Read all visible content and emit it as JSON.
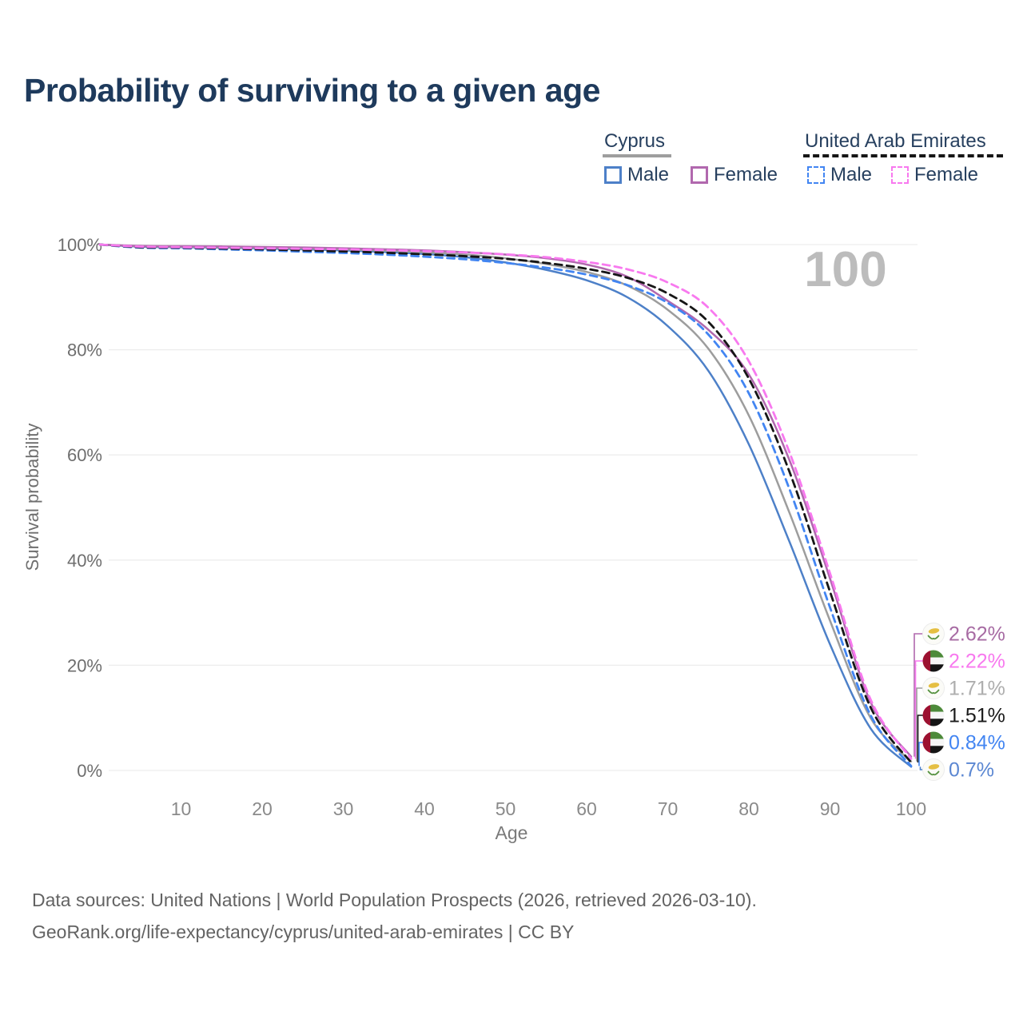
{
  "title": "Probability of surviving to a given age",
  "age_counter": "100",
  "legend": {
    "groups": [
      {
        "name": "Cyprus",
        "line_style": "solid",
        "underline_color": "#9e9e9e",
        "items": [
          {
            "label": "Male",
            "color": "#4d80c8"
          },
          {
            "label": "Female",
            "color": "#b168ae"
          }
        ]
      },
      {
        "name": "United Arab Emirates",
        "line_style": "dashed",
        "underline_color": "#161616",
        "items": [
          {
            "label": "Male",
            "color": "#4285f2"
          },
          {
            "label": "Female",
            "color": "#f879ef"
          }
        ]
      }
    ]
  },
  "chart_data": {
    "type": "line",
    "title": "Probability of surviving to a given age",
    "xlabel": "Age",
    "ylabel": "Survival probability",
    "xlim": [
      0,
      100
    ],
    "ylim": [
      0,
      100
    ],
    "grid": "horizontal",
    "legend_position": "top-right",
    "x_ticks": [
      10,
      20,
      30,
      40,
      50,
      60,
      70,
      80,
      90,
      100
    ],
    "y_ticks": [
      {
        "value": 100,
        "label": "100%"
      },
      {
        "value": 80,
        "label": "80%"
      },
      {
        "value": 60,
        "label": "60%"
      },
      {
        "value": 40,
        "label": "40%"
      },
      {
        "value": 20,
        "label": "20%"
      },
      {
        "value": 0,
        "label": "0%"
      }
    ],
    "x": [
      0,
      5,
      10,
      15,
      20,
      25,
      30,
      35,
      40,
      45,
      50,
      55,
      60,
      65,
      70,
      75,
      80,
      85,
      90,
      95,
      100
    ],
    "series": [
      {
        "id": "cyprus-male",
        "name": "Cyprus Male",
        "country": "Cyprus",
        "sex": "Male",
        "color": "#4d80c8",
        "dash": "solid",
        "flag": "cyprus",
        "end_label": "0.7%",
        "end_label_color": "#5b87d2",
        "values": [
          100,
          99.6,
          99.5,
          99.4,
          99.25,
          99.1,
          98.9,
          98.6,
          98.2,
          97.6,
          96.6,
          95.2,
          93.2,
          90.0,
          84.5,
          76.0,
          62.0,
          43.5,
          24.0,
          8.0,
          0.7
        ]
      },
      {
        "id": "cyprus-total",
        "name": "Cyprus Both sexes",
        "country": "Cyprus",
        "sex": "Both",
        "color": "#9d9d9d",
        "dash": "solid",
        "flag": "cyprus",
        "end_label": "1.71%",
        "end_label_color": "#aeaeae",
        "values": [
          100,
          99.7,
          99.6,
          99.5,
          99.4,
          99.25,
          99.1,
          98.85,
          98.55,
          98.1,
          97.4,
          96.3,
          94.8,
          92.2,
          87.6,
          80.2,
          67.5,
          49.0,
          28.5,
          10.0,
          1.71
        ]
      },
      {
        "id": "cyprus-female",
        "name": "Cyprus Female",
        "country": "Cyprus",
        "sex": "Female",
        "color": "#b168ae",
        "dash": "solid",
        "flag": "cyprus",
        "end_label": "2.62%",
        "end_label_color": "#a76ba3",
        "values": [
          100,
          99.75,
          99.7,
          99.65,
          99.55,
          99.45,
          99.3,
          99.1,
          98.9,
          98.55,
          98.1,
          97.4,
          96.2,
          93.9,
          89.3,
          83.8,
          75.3,
          59.0,
          36.5,
          13.0,
          2.62
        ]
      },
      {
        "id": "uae-male",
        "name": "United Arab Emirates Male",
        "country": "United Arab Emirates",
        "sex": "Male",
        "color": "#4285f2",
        "dash": "dashed",
        "flag": "uae",
        "end_label": "0.84%",
        "end_label_color": "#4285f2",
        "values": [
          100,
          99.4,
          99.3,
          99.1,
          98.9,
          98.65,
          98.4,
          98.1,
          97.7,
          97.2,
          96.5,
          95.6,
          94.3,
          92.3,
          88.9,
          82.9,
          71.7,
          53.5,
          31.0,
          10.5,
          0.84
        ]
      },
      {
        "id": "uae-total",
        "name": "United Arab Emirates Both sexes",
        "country": "United Arab Emirates",
        "sex": "Both",
        "color": "#161616",
        "dash": "dashed",
        "flag": "uae",
        "end_label": "1.51%",
        "end_label_color": "#1a1a1a",
        "values": [
          100,
          99.5,
          99.4,
          99.25,
          99.1,
          98.9,
          98.7,
          98.45,
          98.15,
          97.8,
          97.3,
          96.5,
          95.4,
          93.7,
          90.7,
          85.3,
          74.5,
          56.8,
          34.0,
          12.0,
          1.51
        ]
      },
      {
        "id": "uae-female",
        "name": "United Arab Emirates Female",
        "country": "United Arab Emirates",
        "sex": "Female",
        "color": "#f879ef",
        "dash": "dashed",
        "flag": "uae",
        "end_label": "2.22%",
        "end_label_color": "#f879ef",
        "values": [
          100,
          99.6,
          99.5,
          99.4,
          99.3,
          99.2,
          99.1,
          98.95,
          98.75,
          98.5,
          98.15,
          97.6,
          96.7,
          95.3,
          92.8,
          88.0,
          77.8,
          60.5,
          37.5,
          13.5,
          2.22
        ]
      }
    ]
  },
  "footer": {
    "line1": "Data sources: United Nations | World Population Prospects (2026, retrieved 2026-03-10).",
    "line2": "GeoRank.org/life-expectancy/cyprus/united-arab-emirates | CC BY"
  }
}
